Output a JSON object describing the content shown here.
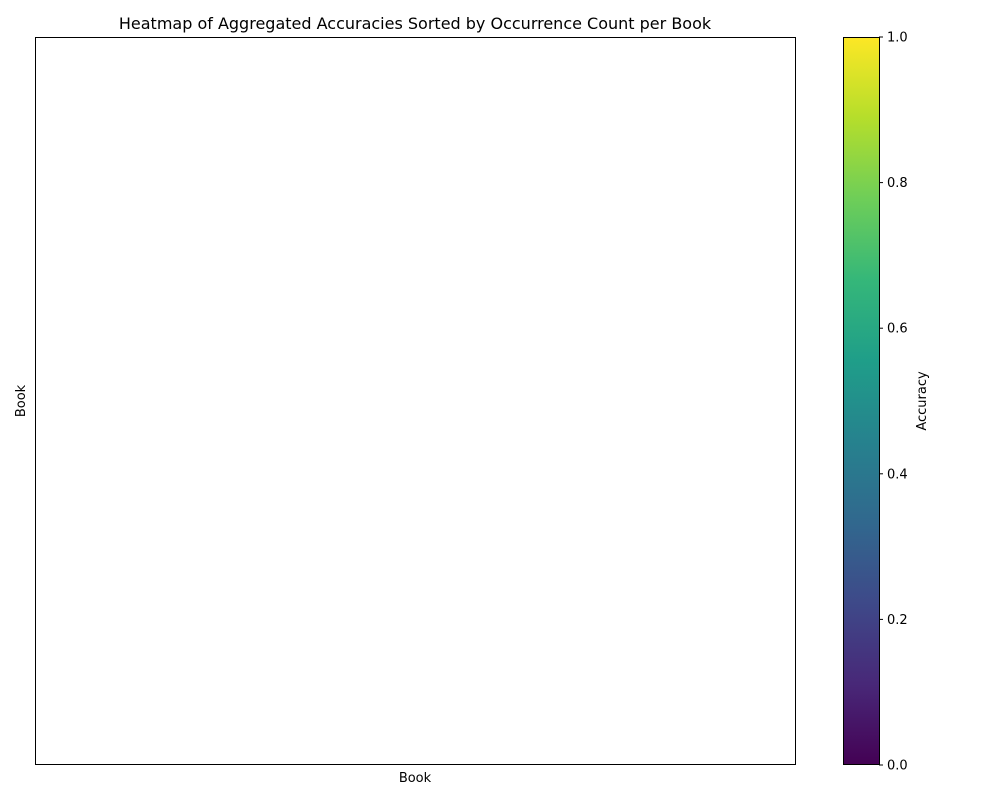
{
  "chart_data": {
    "type": "heatmap",
    "title": "Heatmap of Aggregated Accuracies Sorted by Occurrence Count per Book",
    "xlabel": "Book",
    "ylabel": "Book",
    "x_categories": [],
    "y_categories": [],
    "values": [],
    "colorbar": {
      "label": "Accuracy",
      "colormap": "viridis",
      "range": [
        0,
        1
      ],
      "ticks": [
        0.0,
        0.2,
        0.4,
        0.6,
        0.8,
        1.0
      ],
      "tick_labels": [
        "0.0",
        "0.2",
        "0.4",
        "0.6",
        "0.8",
        "1.0"
      ],
      "colors": [
        "#440154",
        "#482878",
        "#3e4989",
        "#31688e",
        "#26828e",
        "#1f9e89",
        "#35b779",
        "#6ece58",
        "#b5de2b",
        "#fde725"
      ]
    },
    "grid": false
  }
}
